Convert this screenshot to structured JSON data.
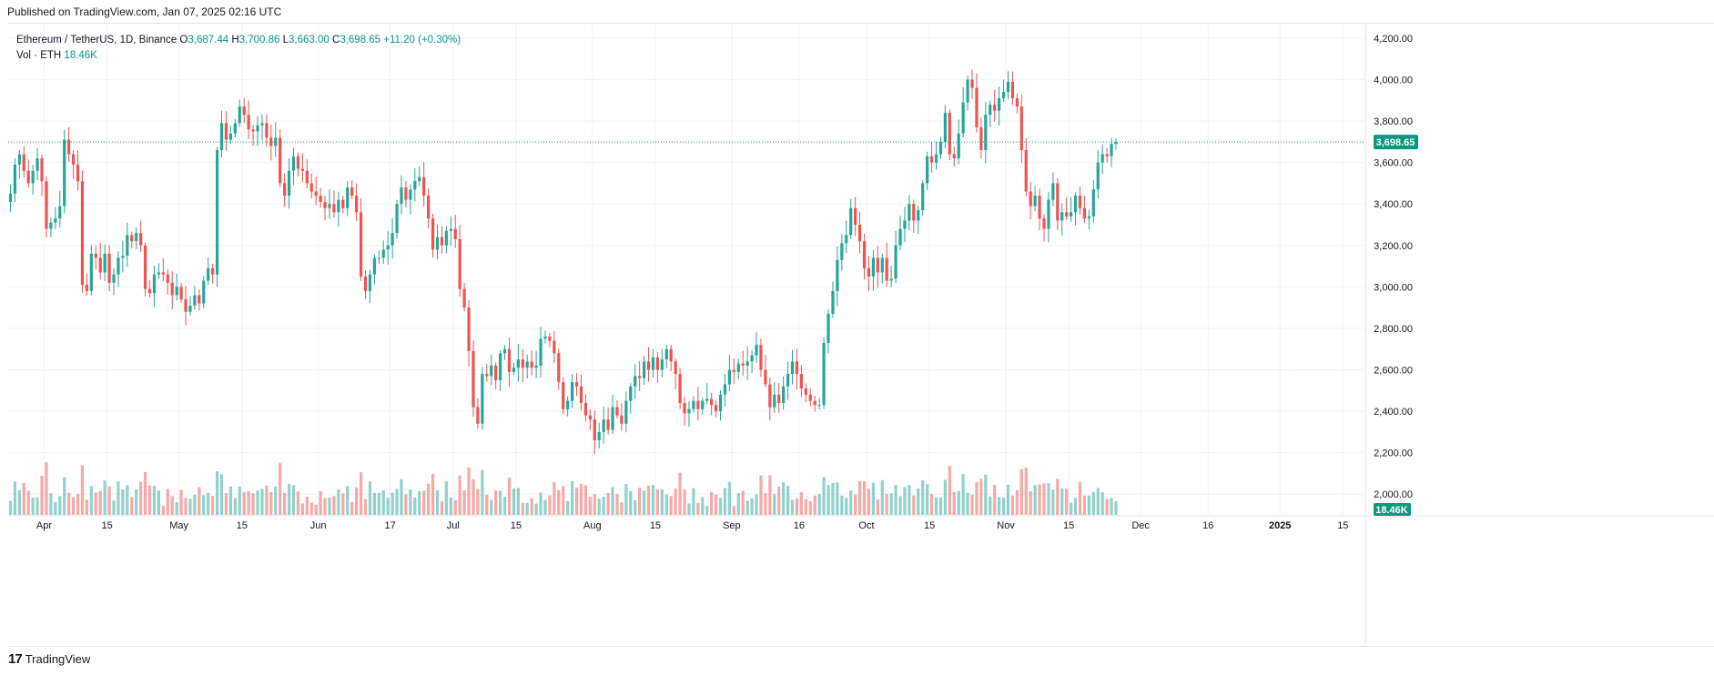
{
  "header": {
    "published": "Published on TradingView.com, Jan 07, 2025 02:16 UTC"
  },
  "legend": {
    "symbol": "Ethereum / TetherUS, 1D, Binance",
    "open_label": "O",
    "open": "3,687.44",
    "high_label": "H",
    "high": "3,700.86",
    "low_label": "L",
    "low": "3,663.00",
    "close_label": "C",
    "close": "3,698.65",
    "change": "+11.20 (+0.30%)",
    "volume_label": "Vol · ETH",
    "volume": "18.46K"
  },
  "last_price_badge": "3,698.65",
  "volume_badge": "18.46K",
  "footer": {
    "brand": "TradingView"
  },
  "colors": {
    "up": "#26a69a",
    "down": "#ef5350",
    "grid": "#f0f3fa",
    "text": "#131722",
    "accent": "#089981"
  },
  "chart_data": {
    "type": "candlestick",
    "symbol": "ETHUSDT",
    "interval": "1D",
    "x_range": [
      "2024-03-24",
      "2025-01-20"
    ],
    "ylim": [
      1900,
      4270
    ],
    "y_ticks": [
      2000,
      2200,
      2400,
      2600,
      2800,
      3000,
      3200,
      3400,
      3600,
      3800,
      4000,
      4200
    ],
    "y_tick_labels": [
      "2,000.00",
      "2,200.00",
      "2,400.00",
      "2,600.00",
      "2,800.00",
      "3,000.00",
      "3,200.00",
      "3,400.00",
      "3,600.00",
      "3,800.00",
      "4,000.00",
      "4,200.00"
    ],
    "x_ticks": [
      {
        "date": "2024-04-01",
        "label": "Apr"
      },
      {
        "date": "2024-04-15",
        "label": "15"
      },
      {
        "date": "2024-05-01",
        "label": "May"
      },
      {
        "date": "2024-05-15",
        "label": "15"
      },
      {
        "date": "2024-06-01",
        "label": "Jun"
      },
      {
        "date": "2024-06-17",
        "label": "17"
      },
      {
        "date": "2024-07-01",
        "label": "Jul"
      },
      {
        "date": "2024-07-15",
        "label": "15"
      },
      {
        "date": "2024-08-01",
        "label": "Aug"
      },
      {
        "date": "2024-08-15",
        "label": "15"
      },
      {
        "date": "2024-09-01",
        "label": "Sep"
      },
      {
        "date": "2024-09-16",
        "label": "16"
      },
      {
        "date": "2024-10-01",
        "label": "Oct"
      },
      {
        "date": "2024-10-15",
        "label": "15"
      },
      {
        "date": "2024-11-01",
        "label": "Nov"
      },
      {
        "date": "2024-11-15",
        "label": "15"
      },
      {
        "date": "2024-12-01",
        "label": "Dec"
      },
      {
        "date": "2024-12-16",
        "label": "16"
      },
      {
        "date": "2025-01-01",
        "label": "2025"
      },
      {
        "date": "2025-01-15",
        "label": "15"
      }
    ],
    "start_date": "2024-03-24",
    "close": [
      3450,
      3590,
      3640,
      3560,
      3500,
      3560,
      3620,
      3510,
      3280,
      3310,
      3330,
      3390,
      3710,
      3640,
      3590,
      3510,
      3010,
      2980,
      3160,
      3140,
      3070,
      3160,
      3020,
      3060,
      3140,
      3150,
      3250,
      3220,
      3260,
      3200,
      2990,
      2970,
      3060,
      3070,
      3060,
      3020,
      2960,
      3000,
      2940,
      2880,
      2910,
      2960,
      2920,
      3030,
      3090,
      3060,
      3660,
      3790,
      3710,
      3740,
      3790,
      3870,
      3830,
      3760,
      3750,
      3780,
      3790,
      3720,
      3680,
      3720,
      3500,
      3440,
      3560,
      3630,
      3570,
      3560,
      3500,
      3460,
      3440,
      3410,
      3380,
      3400,
      3360,
      3420,
      3380,
      3480,
      3440,
      3360,
      3050,
      2980,
      3060,
      3140,
      3140,
      3180,
      3200,
      3260,
      3400,
      3480,
      3420,
      3470,
      3510,
      3530,
      3440,
      3330,
      3180,
      3240,
      3200,
      3270,
      3280,
      3230,
      2990,
      2900,
      2690,
      2420,
      2340,
      2580,
      2570,
      2620,
      2550,
      2680,
      2700,
      2590,
      2610,
      2650,
      2610,
      2640,
      2610,
      2620,
      2750,
      2760,
      2740,
      2680,
      2540,
      2410,
      2450,
      2540,
      2520,
      2440,
      2380,
      2360,
      2260,
      2300,
      2360,
      2310,
      2420,
      2380,
      2340,
      2450,
      2520,
      2570,
      2560,
      2640,
      2600,
      2660,
      2600,
      2650,
      2700,
      2640,
      2580,
      2440,
      2390,
      2410,
      2450,
      2410,
      2450,
      2460,
      2430,
      2400,
      2480,
      2530,
      2600,
      2590,
      2630,
      2620,
      2640,
      2670,
      2720,
      2600,
      2530,
      2420,
      2480,
      2440,
      2520,
      2580,
      2640,
      2580,
      2510,
      2480,
      2450,
      2430,
      2430,
      2730,
      2870,
      2980,
      3130,
      3210,
      3250,
      3380,
      3300,
      3220,
      3090,
      3050,
      3140,
      3070,
      3140,
      3030,
      3040,
      3200,
      3280,
      3320,
      3400,
      3320,
      3370,
      3500,
      3630,
      3600,
      3640,
      3700,
      3840,
      3640,
      3620,
      3740,
      3890,
      4000,
      3960,
      3770,
      3660,
      3830,
      3880,
      3850,
      3910,
      3940,
      3990,
      3910,
      3870,
      3660,
      3460,
      3390,
      3440,
      3330,
      3280,
      3420,
      3500,
      3320,
      3360,
      3340,
      3360,
      3440,
      3380,
      3330,
      3340,
      3470,
      3600,
      3640,
      3630,
      3690,
      3699
    ],
    "volume_last": 18460
  }
}
